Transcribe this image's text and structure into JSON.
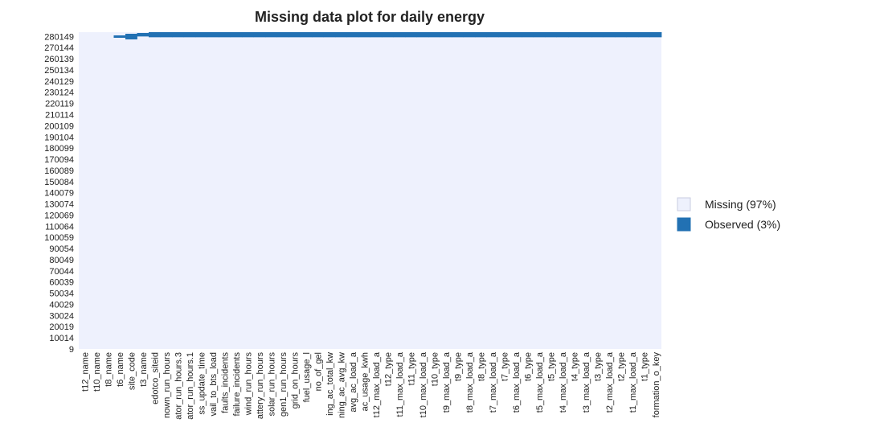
{
  "chart_data": {
    "type": "heatmap",
    "title": "Missing data plot for daily energy",
    "xlabel": "",
    "ylabel": "",
    "variables": [
      "t12_name",
      "t10_name",
      "t8_name",
      "t6_name",
      "site_code",
      "t3_name",
      "edotco_siteid",
      "nown_run_hours",
      "ator_run_hours.3",
      "ator_run_hours.1",
      "ss_update_time",
      "vail_to_bts_load",
      "faults_incidents",
      "failure_incidents",
      "wind_run_hours",
      "attery_run_hours",
      "solar_run_hours",
      "gen1_run_hours",
      "grid_on_hours",
      "fuel_usage_l",
      "no_of_gel",
      "ing_ac_total_kw",
      "ning_ac_avg_kw",
      "avg_ac_load_a",
      "ac_usage_kwh",
      "t12_max_load_a",
      "t12_type",
      "t11_max_load_a",
      "t11_type",
      "t10_max_load_a",
      "t10_type",
      "t9_max_load_a",
      "t9_type",
      "t8_max_load_a",
      "t8_type",
      "t7_max_load_a",
      "t7_type",
      "t6_max_load_a",
      "t6_type",
      "t5_max_load_a",
      "t5_type",
      "t4_max_load_a",
      "t4_type",
      "t3_max_load_a",
      "t3_type",
      "t2_max_load_a",
      "t2_type",
      "t1_max_load_a",
      "t1_type",
      "formation_o_key"
    ],
    "row_ticks": [
      280149,
      270144,
      260139,
      250134,
      240129,
      230124,
      220119,
      210114,
      200109,
      190104,
      180099,
      170094,
      160089,
      150084,
      140079,
      130074,
      120069,
      110064,
      100059,
      90054,
      80049,
      70044,
      60039,
      50034,
      40029,
      30024,
      20019,
      10014,
      9
    ],
    "row_range": [
      9,
      284000
    ],
    "observed_rows_start": 280149,
    "legend": [
      {
        "label": "Missing (97%)",
        "color": "#eef1fd"
      },
      {
        "label": "Observed (3%)",
        "color": "#2271b3"
      }
    ],
    "legend_position": "right"
  }
}
